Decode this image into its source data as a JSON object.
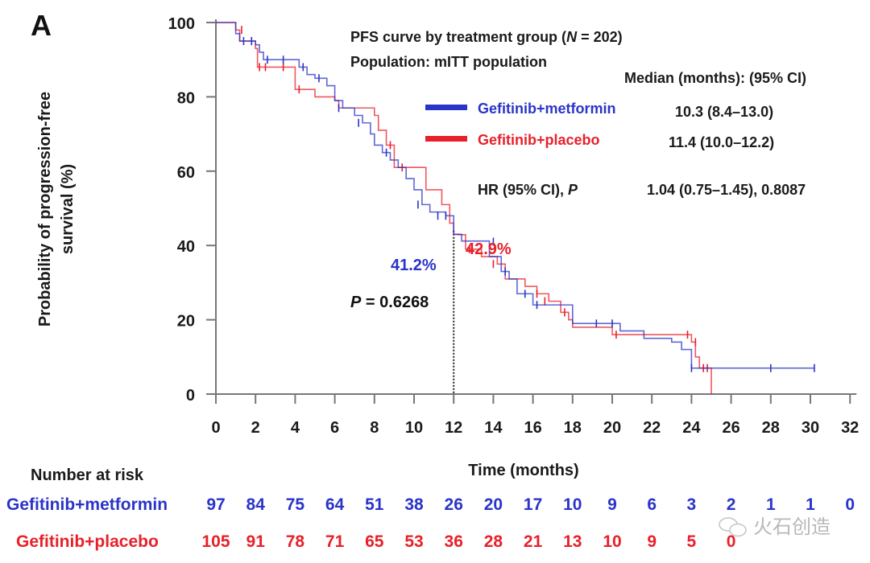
{
  "panel_label": "A",
  "chart_data": {
    "type": "line",
    "subtype": "kaplan-meier",
    "title": "PFS curve by treatment group (N = 202)",
    "title_parts": {
      "prefix": "PFS curve by treatment group (",
      "italic": "N",
      "suffix": " = 202)"
    },
    "subtitle": "Population: mITT population",
    "xlabel": "Time (months)",
    "ylabel": "Probability of progression-free survival (%)",
    "ylabel_lines": [
      "Probability of progression-free",
      "survival (%)"
    ],
    "xlim": [
      0,
      32
    ],
    "ylim": [
      0,
      100
    ],
    "xticks": [
      0,
      2,
      4,
      6,
      8,
      10,
      12,
      14,
      16,
      18,
      20,
      22,
      24,
      26,
      28,
      30,
      32
    ],
    "yticks": [
      0,
      20,
      40,
      60,
      80,
      100
    ],
    "grid": false,
    "legend_position": "top-right",
    "median_header": "Median (months): (95% CI)",
    "hr_label_prefix": "HR (95% CI), ",
    "hr_label_italic": "P",
    "hr_value": "1.04 (0.75–1.45), 0.8087",
    "series": [
      {
        "name": "Gefitinib+metformin",
        "color": "#2a34c8",
        "median": "10.3 (8.4–13.0)",
        "steps": [
          [
            0,
            100
          ],
          [
            1,
            97
          ],
          [
            1.2,
            95
          ],
          [
            2,
            94
          ],
          [
            2.2,
            92
          ],
          [
            2.4,
            90
          ],
          [
            4,
            90
          ],
          [
            4.2,
            88
          ],
          [
            4.6,
            86
          ],
          [
            5,
            85
          ],
          [
            5.6,
            83
          ],
          [
            6,
            79
          ],
          [
            6.4,
            77
          ],
          [
            7,
            75
          ],
          [
            7.4,
            73
          ],
          [
            7.8,
            70
          ],
          [
            8,
            67
          ],
          [
            8.4,
            65
          ],
          [
            8.8,
            63
          ],
          [
            9.2,
            61
          ],
          [
            9.6,
            58
          ],
          [
            10,
            55
          ],
          [
            10.4,
            51
          ],
          [
            10.8,
            49
          ],
          [
            11.6,
            48
          ],
          [
            12,
            43
          ],
          [
            12.4,
            41.2
          ],
          [
            13.4,
            41.2
          ],
          [
            13.8,
            37
          ],
          [
            14.4,
            33
          ],
          [
            14.8,
            31
          ],
          [
            15.2,
            27
          ],
          [
            16,
            24
          ],
          [
            17.6,
            24
          ],
          [
            18,
            19
          ],
          [
            20,
            19
          ],
          [
            20.4,
            17
          ],
          [
            21.2,
            17
          ],
          [
            21.6,
            15
          ],
          [
            23,
            14
          ],
          [
            23.5,
            12
          ],
          [
            24,
            7
          ],
          [
            30.2,
            7
          ]
        ],
        "censors": [
          [
            1.4,
            95
          ],
          [
            1.8,
            95
          ],
          [
            2.6,
            90
          ],
          [
            3.4,
            90
          ],
          [
            4.4,
            88
          ],
          [
            5.2,
            85
          ],
          [
            6.2,
            77
          ],
          [
            7.2,
            73
          ],
          [
            8.6,
            65
          ],
          [
            10.2,
            51
          ],
          [
            11.2,
            48
          ],
          [
            11.6,
            48
          ],
          [
            14,
            41
          ],
          [
            14.6,
            33
          ],
          [
            15.6,
            27
          ],
          [
            16.2,
            24
          ],
          [
            19.2,
            19
          ],
          [
            20,
            19
          ],
          [
            24,
            7
          ],
          [
            28,
            7
          ],
          [
            30.2,
            7
          ]
        ],
        "landmark_label": "41.2%"
      },
      {
        "name": "Gefitinib+placebo",
        "color": "#e8202a",
        "median": "11.4 (10.0–12.2)",
        "steps": [
          [
            0,
            100
          ],
          [
            1,
            98
          ],
          [
            1.2,
            95
          ],
          [
            2,
            93
          ],
          [
            2.1,
            88
          ],
          [
            4,
            88
          ],
          [
            4,
            82
          ],
          [
            5,
            80
          ],
          [
            6,
            79
          ],
          [
            6.2,
            77
          ],
          [
            8,
            75
          ],
          [
            8.2,
            71
          ],
          [
            8.6,
            67
          ],
          [
            9,
            61
          ],
          [
            10,
            61
          ],
          [
            10.6,
            55
          ],
          [
            11.4,
            51
          ],
          [
            11.8,
            46
          ],
          [
            12,
            43
          ],
          [
            12.2,
            42.9
          ],
          [
            12.6,
            39
          ],
          [
            13.4,
            37
          ],
          [
            14.2,
            35
          ],
          [
            14.6,
            31
          ],
          [
            15.6,
            29
          ],
          [
            16.2,
            27
          ],
          [
            16.8,
            25
          ],
          [
            17.4,
            22
          ],
          [
            17.8,
            20
          ],
          [
            18,
            18
          ],
          [
            19.4,
            18
          ],
          [
            20,
            16
          ],
          [
            23.8,
            16
          ],
          [
            24,
            14
          ],
          [
            24.2,
            10
          ],
          [
            24.4,
            7
          ],
          [
            25,
            7
          ],
          [
            25,
            0
          ]
        ],
        "censors": [
          [
            1.3,
            98
          ],
          [
            1.8,
            95
          ],
          [
            2.2,
            88
          ],
          [
            2.5,
            88
          ],
          [
            3.4,
            88
          ],
          [
            4.2,
            82
          ],
          [
            8.8,
            67
          ],
          [
            9.4,
            61
          ],
          [
            12.8,
            39
          ],
          [
            14,
            35
          ],
          [
            16.2,
            27
          ],
          [
            16.6,
            25
          ],
          [
            17.6,
            22
          ],
          [
            20.2,
            16
          ],
          [
            23.8,
            16
          ],
          [
            24.2,
            14
          ],
          [
            24.6,
            7
          ],
          [
            24.8,
            7
          ]
        ],
        "landmark_label": "42.9%"
      }
    ],
    "landmark": {
      "time": 12,
      "p_label_italic": "P",
      "p_label_rest": " = 0.6268"
    },
    "risk_table": {
      "title": "Number at risk",
      "times": [
        0,
        2,
        4,
        6,
        8,
        10,
        12,
        14,
        16,
        18,
        20,
        22,
        24,
        26,
        28,
        30,
        32
      ],
      "rows": [
        {
          "name": "Gefitinib+metformin",
          "values": [
            "97",
            "84",
            "75",
            "64",
            "51",
            "38",
            "26",
            "20",
            "17",
            "10",
            "9",
            "6",
            "3",
            "2",
            "1",
            "1",
            "0"
          ]
        },
        {
          "name": "Gefitinib+placebo",
          "values": [
            "105",
            "91",
            "78",
            "71",
            "65",
            "53",
            "36",
            "28",
            "21",
            "13",
            "10",
            "9",
            "5",
            "0",
            "",
            "",
            ""
          ]
        }
      ]
    }
  },
  "watermark": "火石创造"
}
